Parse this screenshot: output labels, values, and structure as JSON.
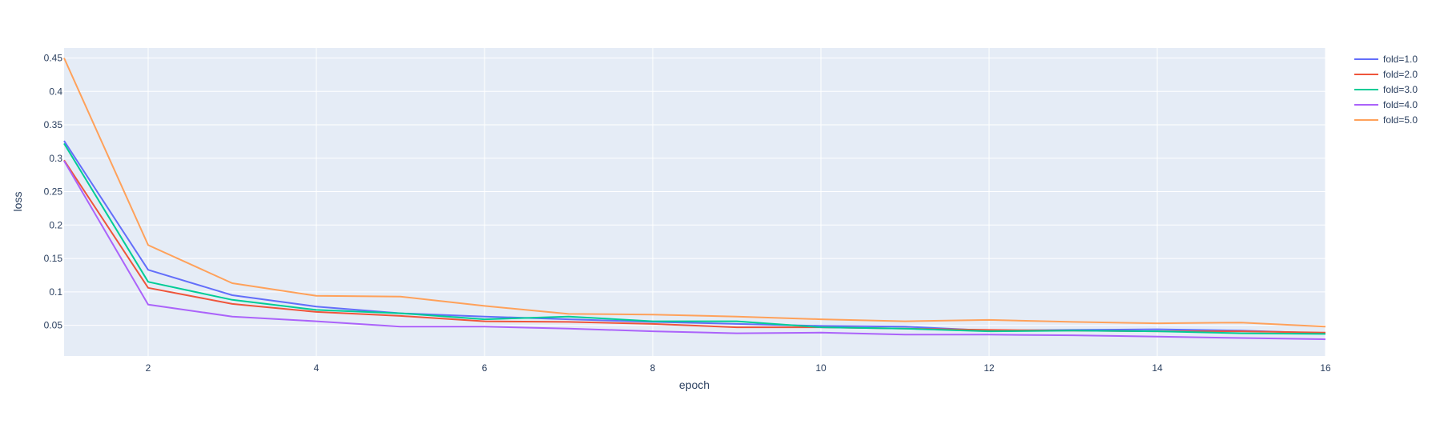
{
  "chart_data": {
    "type": "line",
    "title": "",
    "xlabel": "epoch",
    "ylabel": "loss",
    "xlim": [
      1,
      16
    ],
    "ylim": [
      0.004,
      0.465
    ],
    "x_ticks": [
      2,
      4,
      6,
      8,
      10,
      12,
      14,
      16
    ],
    "x_tick_labels": [
      "2",
      "4",
      "6",
      "8",
      "10",
      "12",
      "14",
      "16"
    ],
    "y_ticks": [
      0.05,
      0.1,
      0.15,
      0.2,
      0.25,
      0.3,
      0.35,
      0.4,
      0.45
    ],
    "y_tick_labels": [
      "0.05",
      "0.1",
      "0.15",
      "0.2",
      "0.25",
      "0.3",
      "0.35",
      "0.4",
      "0.45"
    ],
    "grid": true,
    "legend_position": "top-right",
    "x": [
      1,
      2,
      3,
      4,
      5,
      6,
      7,
      8,
      9,
      10,
      11,
      12,
      13,
      14,
      15,
      16
    ],
    "series": [
      {
        "name": "fold=1.0",
        "color": "#636efa",
        "values": [
          0.326,
          0.133,
          0.095,
          0.078,
          0.068,
          0.063,
          0.059,
          0.055,
          0.052,
          0.049,
          0.048,
          0.042,
          0.043,
          0.044,
          0.042,
          0.038
        ]
      },
      {
        "name": "fold=2.0",
        "color": "#ef553b",
        "values": [
          0.297,
          0.106,
          0.082,
          0.07,
          0.064,
          0.056,
          0.055,
          0.052,
          0.047,
          0.047,
          0.045,
          0.043,
          0.042,
          0.041,
          0.041,
          0.039
        ]
      },
      {
        "name": "fold=3.0",
        "color": "#00cc96",
        "values": [
          0.322,
          0.115,
          0.088,
          0.073,
          0.068,
          0.059,
          0.063,
          0.056,
          0.056,
          0.047,
          0.045,
          0.041,
          0.042,
          0.041,
          0.038,
          0.037
        ]
      },
      {
        "name": "fold=4.0",
        "color": "#ab63fa",
        "values": [
          0.296,
          0.081,
          0.063,
          0.056,
          0.048,
          0.048,
          0.045,
          0.041,
          0.038,
          0.039,
          0.036,
          0.036,
          0.035,
          0.033,
          0.031,
          0.029
        ]
      },
      {
        "name": "fold=5.0",
        "color": "#ffa15a",
        "values": [
          0.45,
          0.17,
          0.113,
          0.094,
          0.093,
          0.079,
          0.067,
          0.066,
          0.063,
          0.059,
          0.056,
          0.058,
          0.055,
          0.053,
          0.054,
          0.048
        ]
      }
    ]
  }
}
